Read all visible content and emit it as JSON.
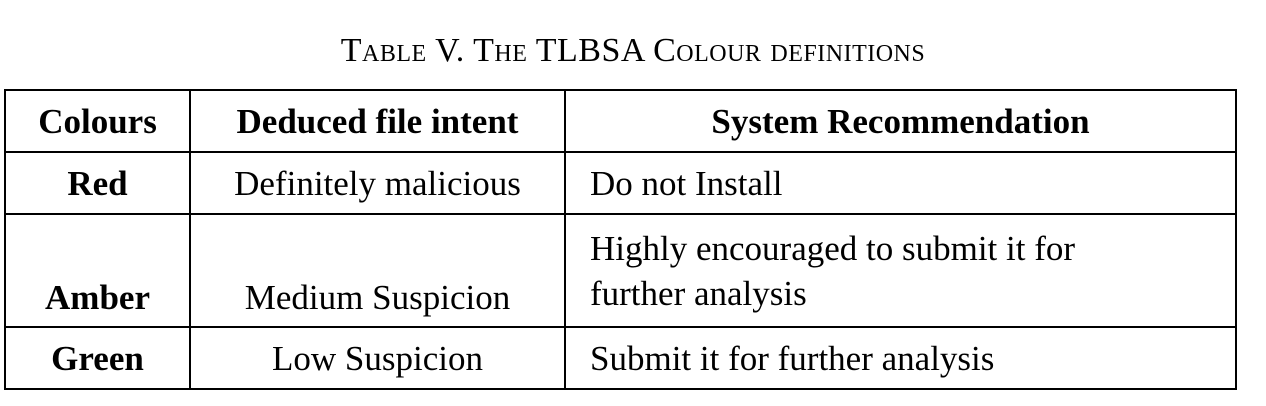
{
  "caption": "Table V. The TLBSA Colour definitions",
  "table": {
    "headers": [
      "Colours",
      "Deduced file intent",
      "System Recommendation"
    ],
    "rows": [
      {
        "colour": "Red",
        "intent": "Definitely malicious",
        "recommendation": "Do not Install"
      },
      {
        "colour": "Amber",
        "intent": "Medium Suspicion",
        "recommendation_line1": "Highly encouraged to submit it for",
        "recommendation_line2": "further analysis"
      },
      {
        "colour": "Green",
        "intent": "Low Suspicion",
        "recommendation": "Submit it for further analysis"
      }
    ]
  }
}
